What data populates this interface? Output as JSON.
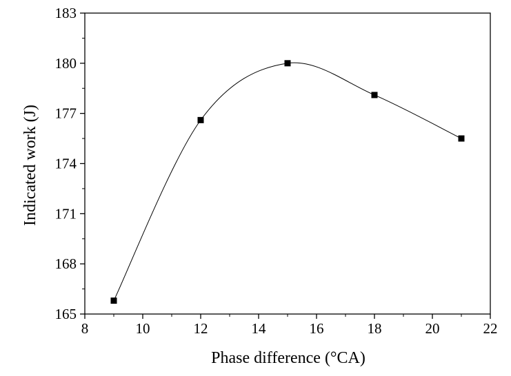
{
  "chart_data": {
    "type": "scatter",
    "title": "",
    "xlabel": "Phase difference (°CA)",
    "ylabel": "Indicated work (J)",
    "xlim": [
      8,
      22
    ],
    "ylim": [
      165,
      183
    ],
    "xticks": [
      8,
      10,
      12,
      14,
      16,
      18,
      20,
      22
    ],
    "yticks": [
      165,
      168,
      171,
      174,
      177,
      180,
      183
    ],
    "grid": false,
    "legend": "none",
    "series": [
      {
        "name": "Indicated work",
        "marker": "square",
        "line": "smooth spline",
        "color": "#000000",
        "x": [
          9,
          12,
          15,
          18,
          21
        ],
        "y": [
          165.8,
          176.6,
          180.0,
          178.1,
          175.5
        ]
      }
    ]
  }
}
